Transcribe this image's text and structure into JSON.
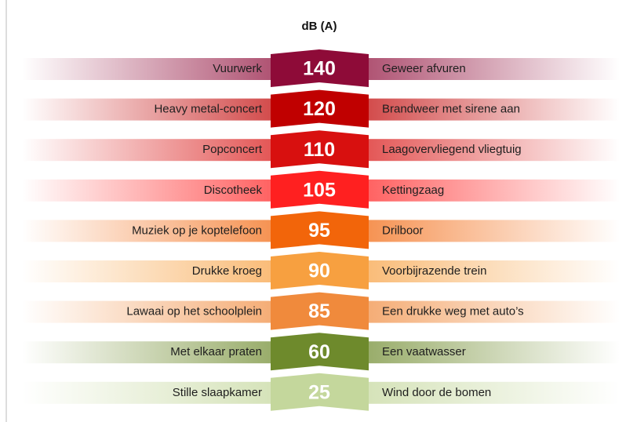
{
  "title": "dB (A)",
  "rows": [
    {
      "left": "Vuurwerk",
      "value": 140,
      "right": "Geweer afvuren",
      "color": "#8e0b38"
    },
    {
      "left": "Heavy metal-concert",
      "value": 120,
      "right": "Brandweer met sirene aan",
      "color": "#c00000"
    },
    {
      "left": "Popconcert",
      "value": 110,
      "right": "Laagovervliegend vliegtuig",
      "color": "#d8100f"
    },
    {
      "left": "Discotheek",
      "value": 105,
      "right": "Kettingzaag",
      "color": "#ff2020"
    },
    {
      "left": "Muziek op je koptelefoon",
      "value": 95,
      "right": "Drilboor",
      "color": "#f2650a"
    },
    {
      "left": "Drukke kroeg",
      "value": 90,
      "right": "Voorbijrazende trein",
      "color": "#f7a040"
    },
    {
      "left": "Lawaai op het schoolplein",
      "value": 85,
      "right": "Een drukke weg met auto’s",
      "color": "#f08a3c"
    },
    {
      "left": "Met elkaar praten",
      "value": 60,
      "right": "Een vaatwasser",
      "color": "#6e8a2c"
    },
    {
      "left": "Stille slaapkamer",
      "value": 25,
      "right": "Wind door de bomen",
      "color": "#c4d79c"
    }
  ]
}
